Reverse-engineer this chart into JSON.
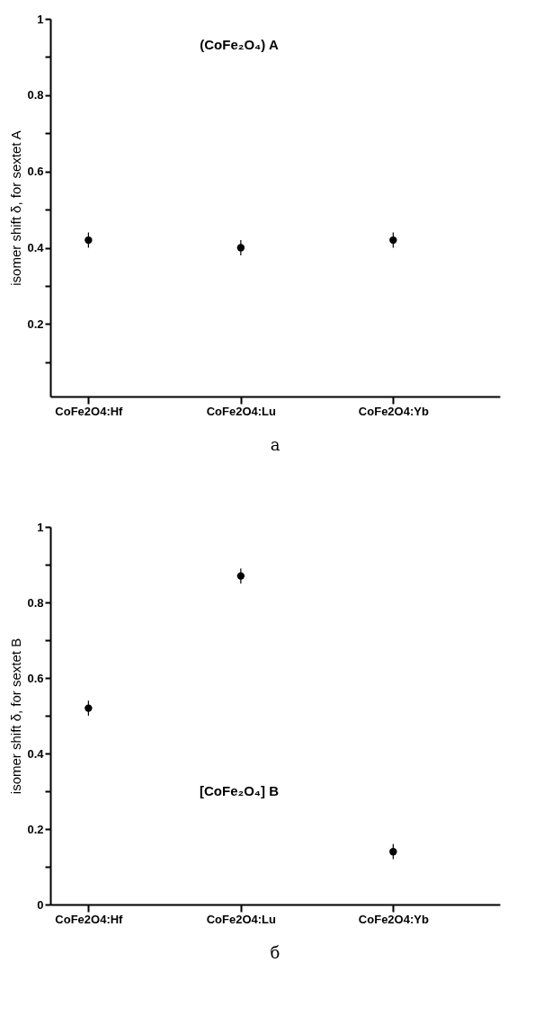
{
  "chart_data": [
    {
      "type": "scatter",
      "categories": [
        "CoFe2O4:Hf",
        "CoFe2O4:Lu",
        "CoFe2O4:Yb"
      ],
      "values": [
        0.42,
        0.4,
        0.42
      ],
      "errors": [
        0.02,
        0.02,
        0.02
      ],
      "color": "#000000",
      "marker": "circle",
      "ylabel": "isomer shift δ, for sextet A",
      "ylim": [
        0.01,
        1
      ],
      "yticks": [
        {
          "value": 0.1,
          "label": null
        },
        0.2,
        {
          "value": 0.3,
          "label": null
        },
        0.4,
        {
          "value": 0.5,
          "label": null
        },
        0.6,
        {
          "value": 0.7,
          "label": null
        },
        0.8,
        {
          "value": 0.9,
          "label": null
        },
        1
      ],
      "grid": false,
      "annotations": [
        "(CoFe₂O₄) A",
        "а"
      ]
    },
    {
      "type": "scatter",
      "categories": [
        "CoFe2O4:Hf",
        "CoFe2O4:Lu",
        "CoFe2O4:Yb"
      ],
      "values": [
        0.52,
        0.87,
        0.14
      ],
      "errors": [
        0.02,
        0.02,
        0.02
      ],
      "color": "#000000",
      "marker": "circle",
      "ylabel": "isomer shift δ, for sextet B",
      "ylim": [
        0,
        1
      ],
      "yticks": [
        0,
        {
          "value": 0.1,
          "label": null
        },
        0.2,
        {
          "value": 0.3,
          "label": null
        },
        0.4,
        {
          "value": 0.5,
          "label": null
        },
        0.6,
        {
          "value": 0.7,
          "label": null
        },
        0.8,
        {
          "value": 0.9,
          "label": null
        },
        1
      ],
      "grid": false,
      "annotations": [
        "[CoFe₂O₄] B",
        "б"
      ]
    }
  ]
}
